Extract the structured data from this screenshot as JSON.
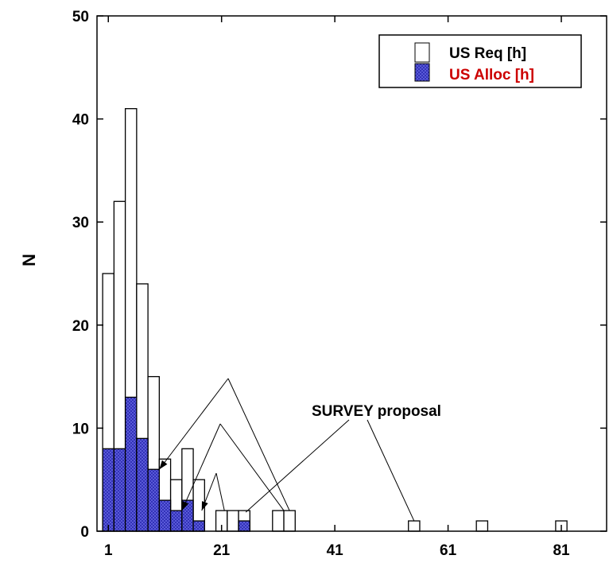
{
  "chart_data": {
    "type": "bar",
    "xlabel": "",
    "ylabel": "N",
    "xlim": [
      -1,
      89
    ],
    "ylim": [
      0,
      50
    ],
    "xticks": [
      1,
      21,
      41,
      61,
      81
    ],
    "yticks": [
      0,
      10,
      20,
      30,
      40,
      50
    ],
    "bin_width": 2,
    "legend": {
      "position": "top-right"
    },
    "series": [
      {
        "name": "US Req [h]",
        "color": "#ffffff",
        "bins": [
          {
            "x": 0,
            "value": 25
          },
          {
            "x": 2,
            "value": 32
          },
          {
            "x": 4,
            "value": 41
          },
          {
            "x": 6,
            "value": 24
          },
          {
            "x": 8,
            "value": 15
          },
          {
            "x": 10,
            "value": 7
          },
          {
            "x": 12,
            "value": 5
          },
          {
            "x": 14,
            "value": 8
          },
          {
            "x": 16,
            "value": 5
          },
          {
            "x": 20,
            "value": 2
          },
          {
            "x": 22,
            "value": 2
          },
          {
            "x": 24,
            "value": 2
          },
          {
            "x": 30,
            "value": 2
          },
          {
            "x": 32,
            "value": 2
          },
          {
            "x": 54,
            "value": 1
          },
          {
            "x": 66,
            "value": 1
          },
          {
            "x": 80,
            "value": 1
          }
        ]
      },
      {
        "name": "US Alloc [h]",
        "color": "#5a5ad8",
        "bins": [
          {
            "x": 0,
            "value": 8
          },
          {
            "x": 2,
            "value": 8
          },
          {
            "x": 4,
            "value": 13
          },
          {
            "x": 6,
            "value": 9
          },
          {
            "x": 8,
            "value": 6
          },
          {
            "x": 10,
            "value": 3
          },
          {
            "x": 12,
            "value": 2
          },
          {
            "x": 14,
            "value": 3
          },
          {
            "x": 16,
            "value": 1
          },
          {
            "x": 24,
            "value": 1
          }
        ]
      }
    ],
    "annotations": [
      {
        "text": "SURVEY proposal",
        "arrows_to": [
          {
            "x": 10,
            "y": 6
          },
          {
            "x": 14,
            "y": 2
          },
          {
            "x": 17.5,
            "y": 2
          },
          {
            "x": 25,
            "y": 2
          }
        ],
        "lines_to": [
          {
            "x": 32,
            "y": 2
          },
          {
            "x": 33,
            "y": 2
          },
          {
            "x": 55,
            "y": 1
          }
        ]
      }
    ],
    "legend_colors": {
      "req_text": "#000000",
      "alloc_text": "#cc0000"
    }
  }
}
